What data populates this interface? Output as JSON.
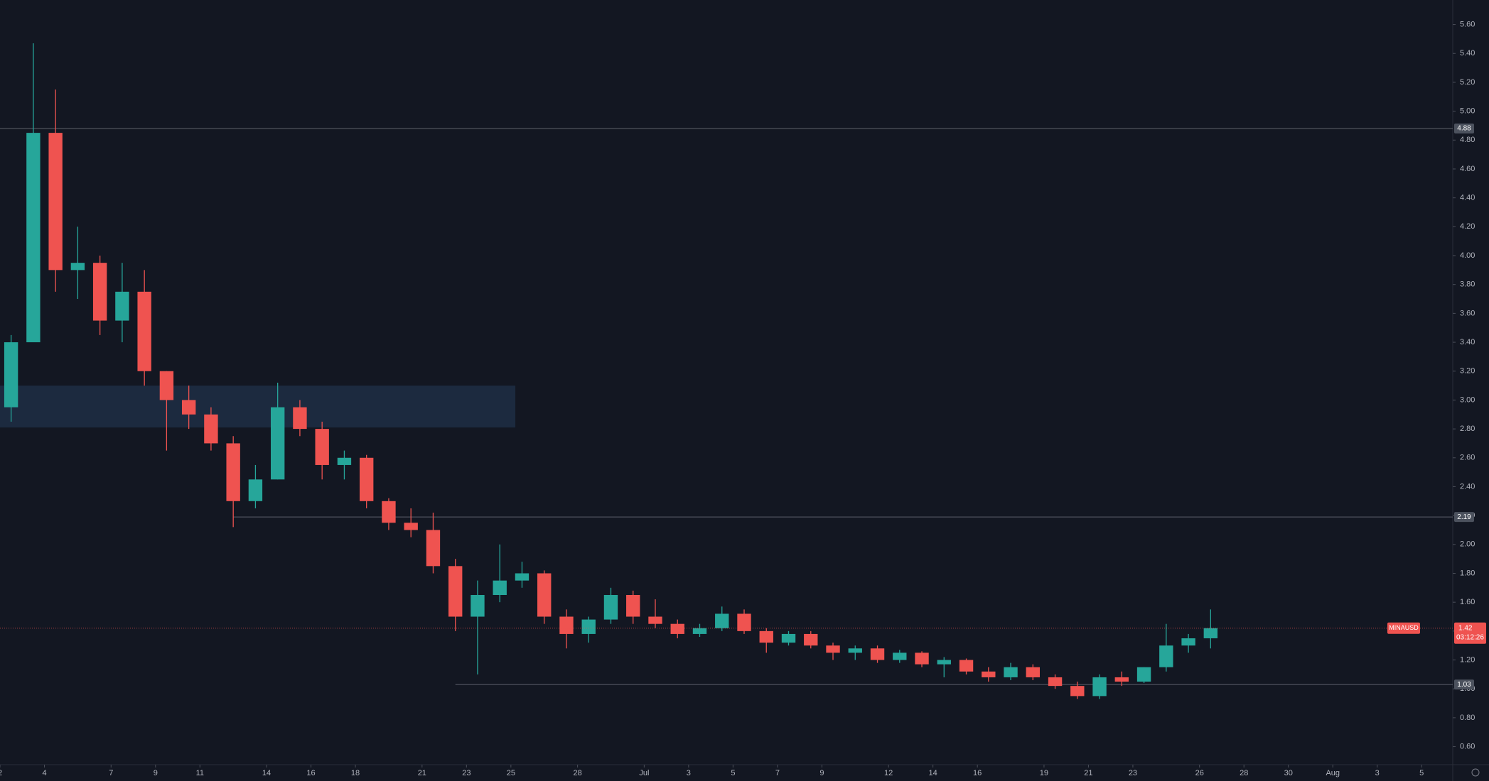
{
  "chart_data": {
    "type": "candlestick",
    "symbol": "MINAUSD",
    "countdown": "03:12:26",
    "last": 1.42,
    "up_color": "#26a69a",
    "down_color": "#ef5350",
    "xlim": [
      0,
      65.4
    ],
    "ylim": [
      0.475,
      5.77
    ],
    "xticks": [
      {
        "value": 0,
        "label": "2"
      },
      {
        "value": 2,
        "label": "4"
      },
      {
        "value": 5,
        "label": "7"
      },
      {
        "value": 7,
        "label": "9"
      },
      {
        "value": 9,
        "label": "11"
      },
      {
        "value": 12,
        "label": "14"
      },
      {
        "value": 14,
        "label": "16"
      },
      {
        "value": 16,
        "label": "18"
      },
      {
        "value": 19,
        "label": "21"
      },
      {
        "value": 21,
        "label": "23"
      },
      {
        "value": 23,
        "label": "25"
      },
      {
        "value": 26,
        "label": "28"
      },
      {
        "value": 29,
        "label": "Jul"
      },
      {
        "value": 31,
        "label": "3"
      },
      {
        "value": 33,
        "label": "5"
      },
      {
        "value": 35,
        "label": "7"
      },
      {
        "value": 37,
        "label": "9"
      },
      {
        "value": 40,
        "label": "12"
      },
      {
        "value": 42,
        "label": "14"
      },
      {
        "value": 44,
        "label": "16"
      },
      {
        "value": 47,
        "label": "19"
      },
      {
        "value": 49,
        "label": "21"
      },
      {
        "value": 51,
        "label": "23"
      },
      {
        "value": 54,
        "label": "26"
      },
      {
        "value": 56,
        "label": "28"
      },
      {
        "value": 58,
        "label": "30"
      },
      {
        "value": 60,
        "label": "Aug"
      },
      {
        "value": 62,
        "label": "3"
      },
      {
        "value": 64,
        "label": "5"
      }
    ],
    "yticks": [
      {
        "value": 0.6,
        "label": "0.60"
      },
      {
        "value": 0.8,
        "label": "0.80"
      },
      {
        "value": 1,
        "label": "1.00"
      },
      {
        "value": 1.2,
        "label": "1.20"
      },
      {
        "value": 1.4,
        "label": "1.40"
      },
      {
        "value": 1.6,
        "label": "1.60"
      },
      {
        "value": 1.8,
        "label": "1.80"
      },
      {
        "value": 2,
        "label": "2.00"
      },
      {
        "value": 2.2,
        "label": "2.20"
      },
      {
        "value": 2.4,
        "label": "2.40"
      },
      {
        "value": 2.6,
        "label": "2.60"
      },
      {
        "value": 2.8,
        "label": "2.80"
      },
      {
        "value": 3,
        "label": "3.00"
      },
      {
        "value": 3.2,
        "label": "3.20"
      },
      {
        "value": 3.4,
        "label": "3.40"
      },
      {
        "value": 3.6,
        "label": "3.60"
      },
      {
        "value": 3.8,
        "label": "3.80"
      },
      {
        "value": 4,
        "label": "4.00"
      },
      {
        "value": 4.2,
        "label": "4.20"
      },
      {
        "value": 4.4,
        "label": "4.40"
      },
      {
        "value": 4.6,
        "label": "4.60"
      },
      {
        "value": 4.8,
        "label": "4.80"
      },
      {
        "value": 5,
        "label": "5.00"
      },
      {
        "value": 5.2,
        "label": "5.20"
      },
      {
        "value": 5.4,
        "label": "5.40"
      },
      {
        "value": 5.6,
        "label": "5.60"
      }
    ],
    "levels": [
      {
        "value": 4.88,
        "x_start": 0
      },
      {
        "value": 2.19,
        "x_start": 10.5
      },
      {
        "value": 1.03,
        "x_start": 20.5
      }
    ],
    "zone": {
      "x": [
        0,
        23.2
      ],
      "y": [
        2.81,
        3.1
      ]
    },
    "x": [
      0.5,
      1.5,
      2.5,
      3.5,
      4.5,
      5.5,
      6.5,
      7.5,
      8.5,
      9.5,
      10.5,
      11.5,
      12.5,
      13.5,
      14.5,
      15.5,
      16.5,
      17.5,
      18.5,
      19.5,
      20.5,
      21.5,
      22.5,
      23.5,
      24.5,
      25.5,
      26.5,
      27.5,
      28.5,
      29.5,
      30.5,
      31.5,
      32.5,
      33.5,
      34.5,
      35.5,
      36.5,
      37.5,
      38.5,
      39.5,
      40.5,
      41.5,
      42.5,
      43.5,
      44.5,
      45.5,
      46.5,
      47.5,
      48.5,
      49.5,
      50.5,
      51.5,
      52.5,
      53.5,
      54.5
    ],
    "open": [
      2.95,
      3.4,
      4.85,
      3.9,
      3.95,
      3.55,
      3.75,
      3.2,
      3.0,
      2.9,
      2.7,
      2.3,
      2.45,
      2.95,
      2.8,
      2.55,
      2.6,
      2.3,
      2.15,
      2.1,
      1.85,
      1.5,
      1.65,
      1.75,
      1.8,
      1.5,
      1.38,
      1.48,
      1.65,
      1.5,
      1.45,
      1.38,
      1.42,
      1.52,
      1.4,
      1.32,
      1.38,
      1.3,
      1.25,
      1.28,
      1.2,
      1.25,
      1.17,
      1.2,
      1.12,
      1.08,
      1.15,
      1.08,
      1.02,
      0.95,
      1.08,
      1.05,
      1.15,
      1.3,
      1.35
    ],
    "high": [
      3.45,
      5.47,
      5.15,
      4.2,
      4.0,
      3.95,
      3.9,
      3.2,
      3.1,
      2.95,
      2.75,
      2.55,
      3.12,
      3.0,
      2.85,
      2.65,
      2.62,
      2.32,
      2.25,
      2.22,
      1.9,
      1.75,
      2.0,
      1.88,
      1.82,
      1.55,
      1.5,
      1.7,
      1.68,
      1.62,
      1.48,
      1.45,
      1.57,
      1.55,
      1.42,
      1.4,
      1.4,
      1.32,
      1.3,
      1.3,
      1.27,
      1.26,
      1.22,
      1.21,
      1.15,
      1.18,
      1.17,
      1.1,
      1.05,
      1.1,
      1.12,
      1.15,
      1.45,
      1.38,
      1.55
    ],
    "low": [
      2.85,
      3.4,
      3.75,
      3.7,
      3.45,
      3.4,
      3.1,
      2.65,
      2.8,
      2.65,
      2.12,
      2.25,
      2.45,
      2.75,
      2.45,
      2.45,
      2.25,
      2.1,
      2.05,
      1.8,
      1.4,
      1.1,
      1.6,
      1.7,
      1.45,
      1.28,
      1.32,
      1.45,
      1.45,
      1.42,
      1.35,
      1.36,
      1.4,
      1.38,
      1.25,
      1.3,
      1.28,
      1.2,
      1.2,
      1.18,
      1.18,
      1.15,
      1.08,
      1.1,
      1.05,
      1.06,
      1.06,
      1.0,
      0.93,
      0.93,
      1.02,
      1.04,
      1.12,
      1.25,
      1.28
    ],
    "close": [
      3.4,
      4.85,
      3.9,
      3.95,
      3.55,
      3.75,
      3.2,
      3.0,
      2.9,
      2.7,
      2.3,
      2.45,
      2.95,
      2.8,
      2.55,
      2.6,
      2.3,
      2.15,
      2.1,
      1.85,
      1.5,
      1.65,
      1.75,
      1.8,
      1.5,
      1.38,
      1.48,
      1.65,
      1.5,
      1.45,
      1.38,
      1.42,
      1.52,
      1.4,
      1.32,
      1.38,
      1.3,
      1.25,
      1.28,
      1.2,
      1.25,
      1.17,
      1.2,
      1.12,
      1.08,
      1.15,
      1.08,
      1.02,
      0.95,
      1.08,
      1.05,
      1.15,
      1.3,
      1.35,
      1.42
    ]
  }
}
